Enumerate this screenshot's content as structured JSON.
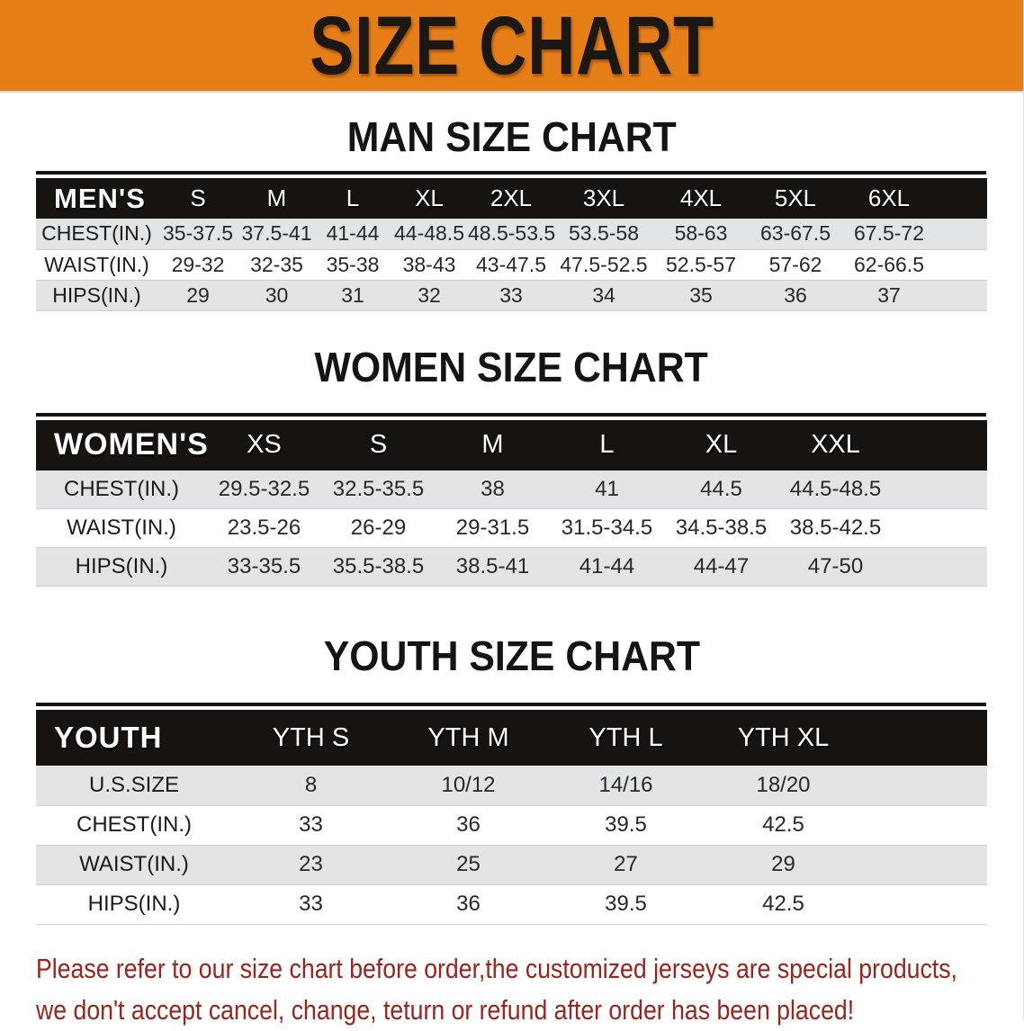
{
  "banner": {
    "title": "SIZE CHART",
    "bg_color": "#e67f18"
  },
  "colors": {
    "banner_orange": "#e67f18",
    "table_header_black": "#171310",
    "row_stripe_gray": "#e3e4e6",
    "footer_red": "#9d231c"
  },
  "tables": {
    "men": {
      "heading": "MAN SIZE CHART",
      "header": [
        "MEN'S",
        "S",
        "M",
        "L",
        "XL",
        "2XL",
        "3XL",
        "4XL",
        "5XL",
        "6XL"
      ],
      "rows": [
        [
          "CHEST(IN.)",
          "35-37.5",
          "37.5-41",
          "41-44",
          "44-48.5",
          "48.5-53.5",
          "53.5-58",
          "58-63",
          "63-67.5",
          "67.5-72"
        ],
        [
          "WAIST(IN.)",
          "29-32",
          "32-35",
          "35-38",
          "38-43",
          "43-47.5",
          "47.5-52.5",
          "52.5-57",
          "57-62",
          "62-66.5"
        ],
        [
          "HIPS(IN.)",
          "29",
          "30",
          "31",
          "32",
          "33",
          "34",
          "35",
          "36",
          "37"
        ]
      ]
    },
    "women": {
      "heading": "WOMEN SIZE CHART",
      "header": [
        "WOMEN'S",
        "XS",
        "S",
        "M",
        "L",
        "XL",
        "XXL"
      ],
      "rows": [
        [
          "CHEST(IN.)",
          "29.5-32.5",
          "32.5-35.5",
          "38",
          "41",
          "44.5",
          "44.5-48.5"
        ],
        [
          "WAIST(IN.)",
          "23.5-26",
          "26-29",
          "29-31.5",
          "31.5-34.5",
          "34.5-38.5",
          "38.5-42.5"
        ],
        [
          "HIPS(IN.)",
          "33-35.5",
          "35.5-38.5",
          "38.5-41",
          "41-44",
          "44-47",
          "47-50"
        ]
      ]
    },
    "youth": {
      "heading": "YOUTH SIZE CHART",
      "header": [
        "YOUTH",
        "YTH S",
        "YTH M",
        "YTH L",
        "YTH XL"
      ],
      "rows": [
        [
          "U.S.SIZE",
          "8",
          "10/12",
          "14/16",
          "18/20"
        ],
        [
          "CHEST(IN.)",
          "33",
          "36",
          "39.5",
          "42.5"
        ],
        [
          "WAIST(IN.)",
          "23",
          "25",
          "27",
          "29"
        ],
        [
          "HIPS(IN.)",
          "33",
          "36",
          "39.5",
          "42.5"
        ]
      ]
    }
  },
  "footer": {
    "line1": "Please refer to our size chart before order,the customized jerseys are special products,",
    "line2": "we don't accept cancel, change, teturn or refund after order has been placed!"
  }
}
